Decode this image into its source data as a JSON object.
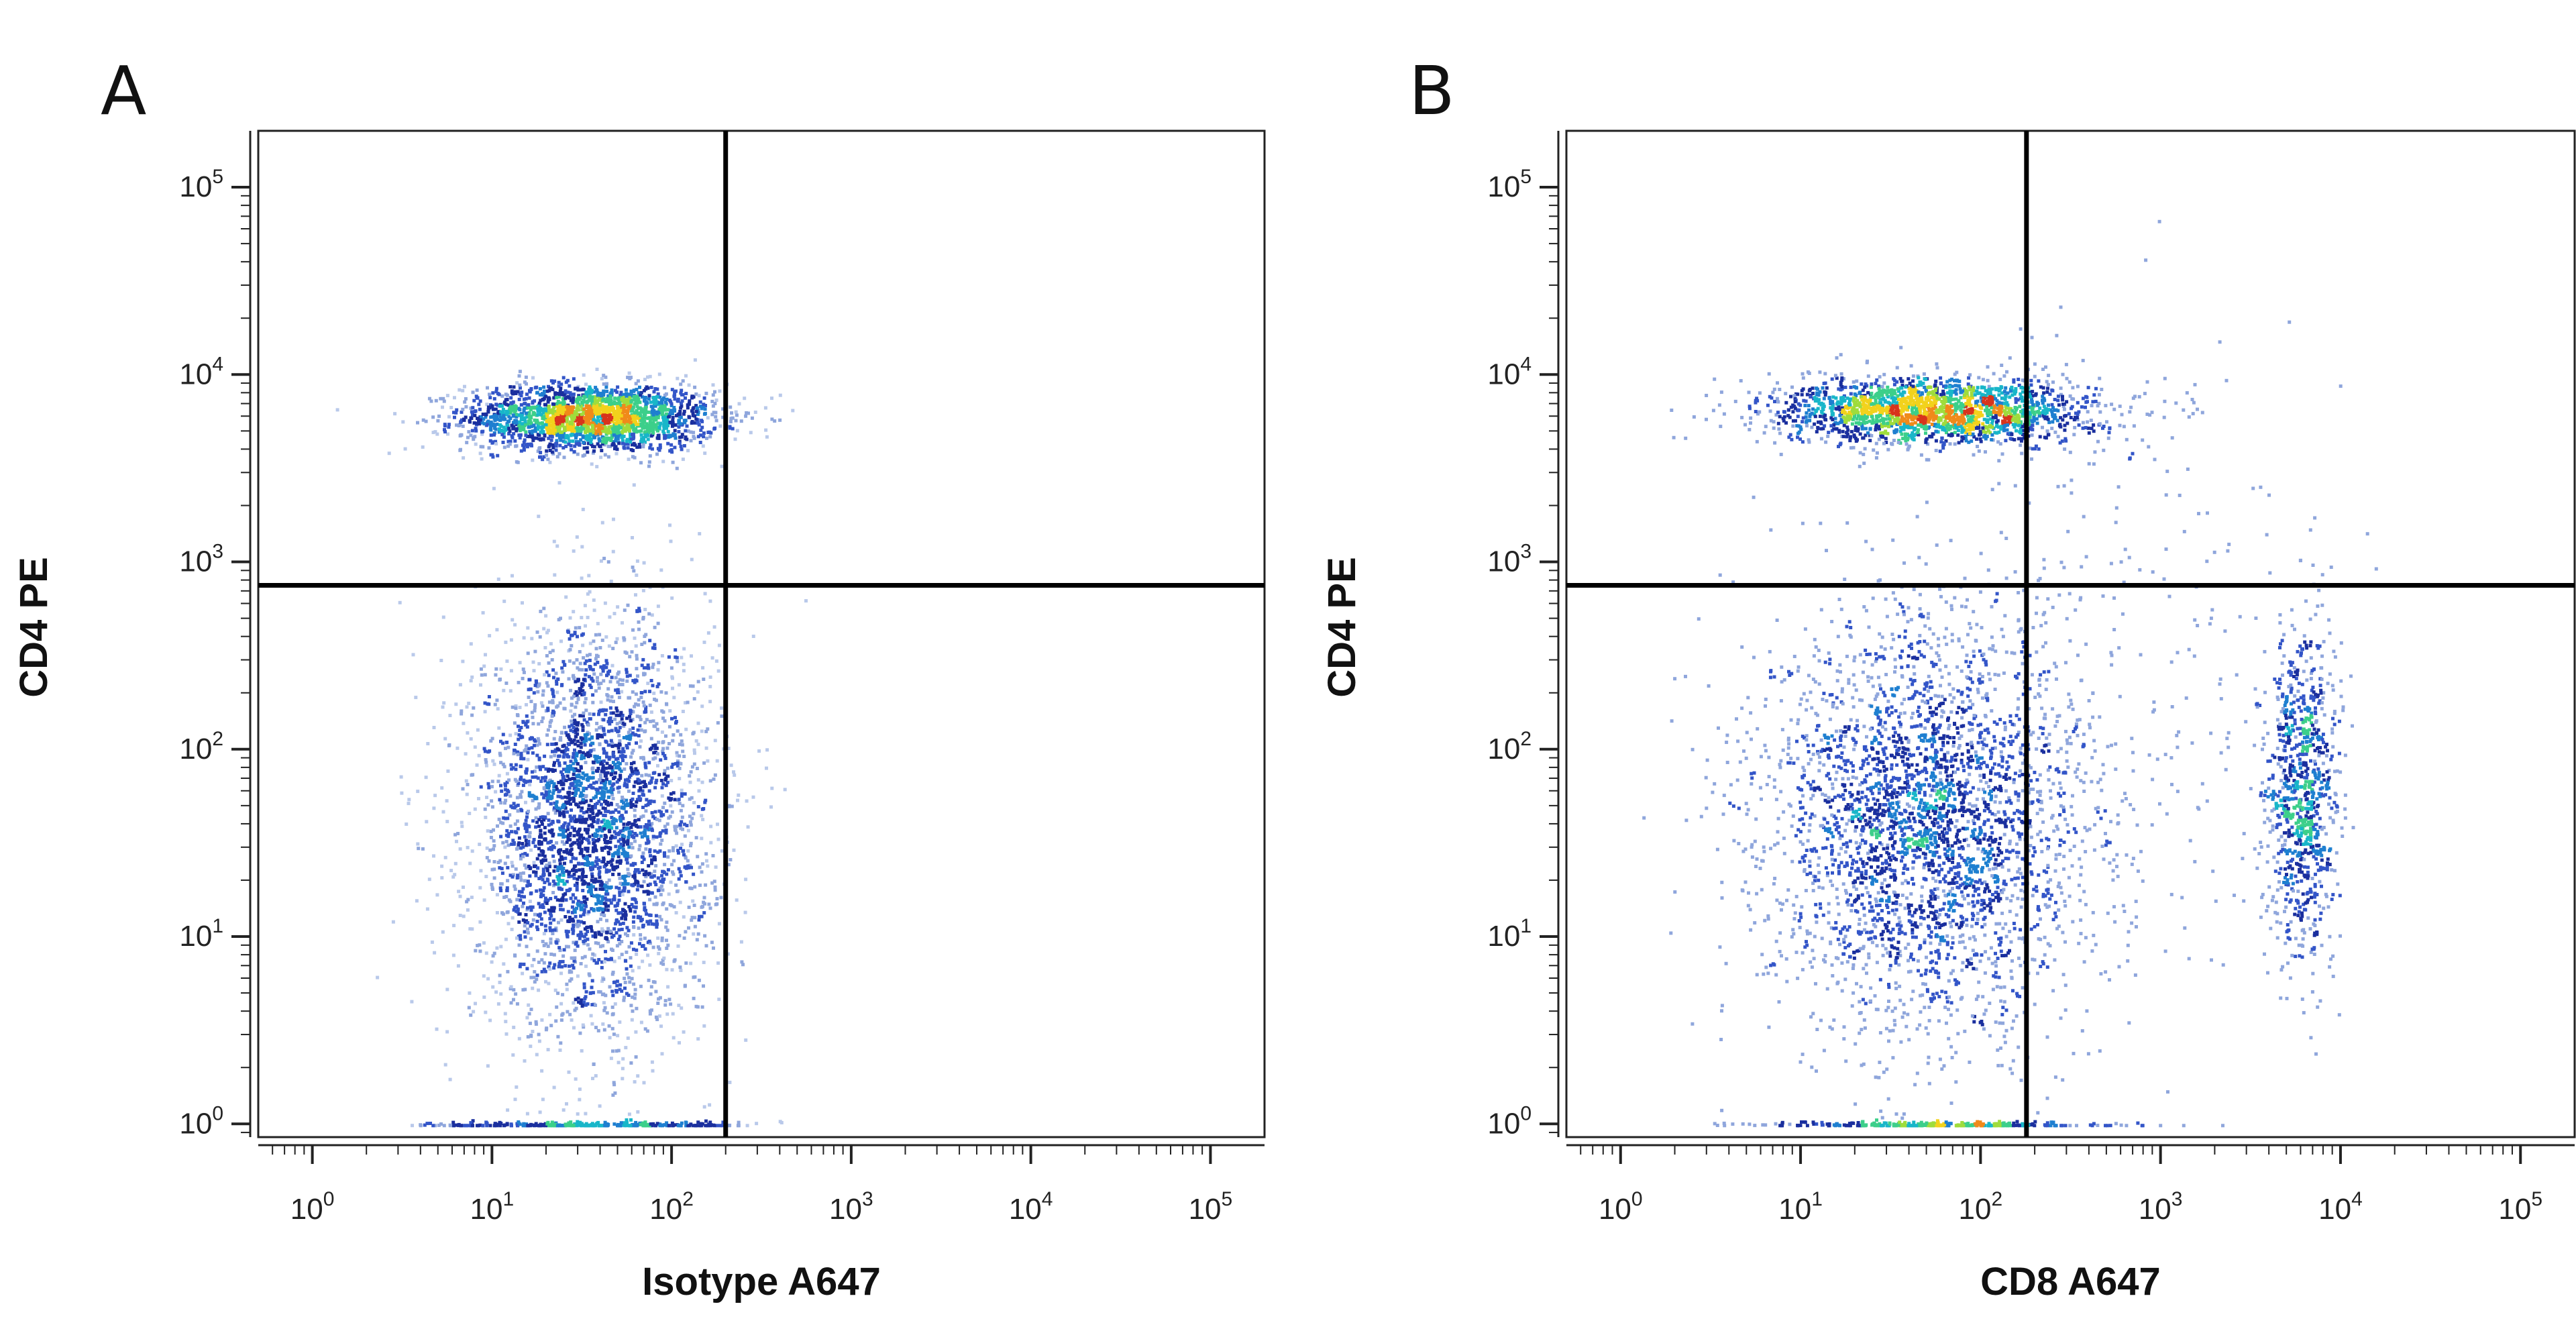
{
  "chart_data": [
    {
      "type": "scatter",
      "panel_label": "A",
      "xlabel": "Isotype A647",
      "ylabel": "CD4 PE",
      "x_scale": "log",
      "y_scale": "log",
      "xlim": [
        0.5,
        200000
      ],
      "ylim": [
        0.85,
        200000
      ],
      "x_ticks": [
        {
          "base": "10",
          "exp": "0",
          "value": 1
        },
        {
          "base": "10",
          "exp": "1",
          "value": 10
        },
        {
          "base": "10",
          "exp": "2",
          "value": 100
        },
        {
          "base": "10",
          "exp": "3",
          "value": 1000
        },
        {
          "base": "10",
          "exp": "4",
          "value": 10000
        },
        {
          "base": "10",
          "exp": "5",
          "value": 100000
        }
      ],
      "y_ticks": [
        {
          "base": "10",
          "exp": "0",
          "value": 1
        },
        {
          "base": "10",
          "exp": "1",
          "value": 10
        },
        {
          "base": "10",
          "exp": "2",
          "value": 100
        },
        {
          "base": "10",
          "exp": "3",
          "value": 1000
        },
        {
          "base": "10",
          "exp": "4",
          "value": 10000
        },
        {
          "base": "10",
          "exp": "5",
          "value": 100000
        }
      ],
      "quadrant_gate": {
        "x": 200,
        "y": 750
      },
      "populations": [
        {
          "center_x": 35,
          "center_y": 6000,
          "spread_log_x": 0.35,
          "spread_log_y": 0.09,
          "count": 2200
        },
        {
          "center_x": 35,
          "center_y": 40,
          "spread_log_x": 0.33,
          "spread_log_y": 0.55,
          "count": 3500
        },
        {
          "center_x": 35,
          "center_y": 1.0,
          "spread_log_x": 0.45,
          "spread_log_y": 0.01,
          "count": 300
        }
      ]
    },
    {
      "type": "scatter",
      "panel_label": "B",
      "xlabel": "CD8 A647",
      "ylabel": "CD4 PE",
      "x_scale": "log",
      "y_scale": "log",
      "xlim": [
        0.5,
        200000
      ],
      "ylim": [
        0.85,
        200000
      ],
      "x_ticks": [
        {
          "base": "10",
          "exp": "0",
          "value": 1
        },
        {
          "base": "10",
          "exp": "1",
          "value": 10
        },
        {
          "base": "10",
          "exp": "2",
          "value": 100
        },
        {
          "base": "10",
          "exp": "3",
          "value": 1000
        },
        {
          "base": "10",
          "exp": "4",
          "value": 10000
        },
        {
          "base": "10",
          "exp": "5",
          "value": 100000
        }
      ],
      "y_ticks": [
        {
          "base": "10",
          "exp": "0",
          "value": 1
        },
        {
          "base": "10",
          "exp": "1",
          "value": 10
        },
        {
          "base": "10",
          "exp": "2",
          "value": 100
        },
        {
          "base": "10",
          "exp": "3",
          "value": 1000
        },
        {
          "base": "10",
          "exp": "4",
          "value": 10000
        },
        {
          "base": "10",
          "exp": "5",
          "value": 100000
        }
      ],
      "quadrant_gate": {
        "x": 180,
        "y": 750
      },
      "populations": [
        {
          "center_x": 55,
          "center_y": 6500,
          "spread_log_x": 0.45,
          "spread_log_y": 0.09,
          "count": 2000
        },
        {
          "center_x": 50,
          "center_y": 40,
          "spread_log_x": 0.45,
          "spread_log_y": 0.55,
          "count": 3200
        },
        {
          "center_x": 6000,
          "center_y": 60,
          "spread_log_x": 0.1,
          "spread_log_y": 0.45,
          "count": 900
        },
        {
          "center_x": 500,
          "center_y": 200,
          "spread_log_x": 0.6,
          "spread_log_y": 1.0,
          "count": 250
        },
        {
          "center_x": 60,
          "center_y": 1.0,
          "spread_log_x": 0.5,
          "spread_log_y": 0.01,
          "count": 300
        }
      ]
    }
  ]
}
